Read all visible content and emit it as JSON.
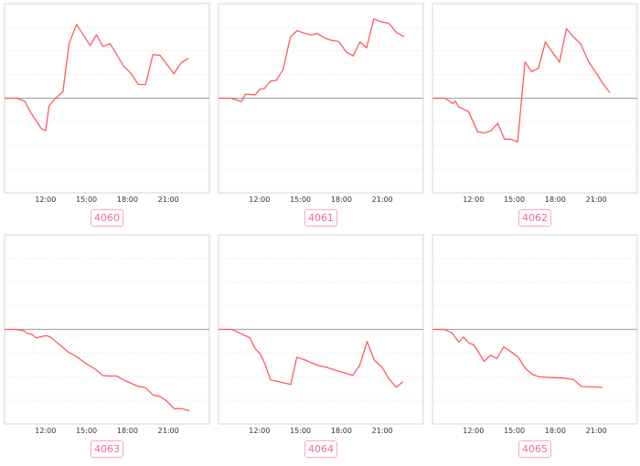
{
  "chart_data": [
    {
      "type": "line",
      "label": "4060",
      "xticks": [
        "12:00",
        "15:00",
        "18:00",
        "21:00"
      ],
      "xlim": [
        "09:00",
        "24:00"
      ],
      "ylim": [
        -4,
        4
      ],
      "grid": true,
      "color": "#ff5a5f",
      "x": [
        9.0,
        9.87,
        10.47,
        10.93,
        11.67,
        12.0,
        12.27,
        12.73,
        13.27,
        13.73,
        14.27,
        15.27,
        15.73,
        16.2,
        16.73,
        17.73,
        18.27,
        18.8,
        19.33,
        19.87,
        20.4,
        21.4,
        21.93,
        22.47
      ],
      "y": [
        0,
        0,
        -0.12,
        -0.62,
        -1.27,
        -1.38,
        -0.31,
        0,
        0.27,
        2.31,
        3.12,
        2.23,
        2.69,
        2.19,
        2.31,
        1.35,
        1.04,
        0.58,
        0.58,
        1.85,
        1.81,
        1.04,
        1.5,
        1.69
      ]
    },
    {
      "type": "line",
      "label": "4061",
      "xticks": [
        "12:00",
        "15:00",
        "18:00",
        "21:00"
      ],
      "xlim": [
        "09:00",
        "24:00"
      ],
      "ylim": [
        -4,
        4
      ],
      "grid": true,
      "color": "#ff5a5f",
      "x": [
        9.02,
        9.91,
        10.69,
        10.96,
        11.69,
        12.02,
        12.36,
        12.8,
        13.24,
        13.73,
        14.27,
        14.76,
        15.24,
        15.8,
        16.24,
        16.8,
        17.24,
        17.8,
        18.36,
        18.87,
        19.36,
        19.84,
        20.38,
        20.91,
        21.47,
        22.02,
        22.58
      ],
      "y": [
        0,
        0,
        -0.14,
        0.17,
        0.14,
        0.38,
        0.41,
        0.72,
        0.76,
        1.21,
        2.6,
        2.86,
        2.76,
        2.68,
        2.74,
        2.54,
        2.45,
        2.4,
        1.95,
        1.79,
        2.38,
        2.13,
        3.35,
        3.23,
        3.17,
        2.79,
        2.6
      ]
    },
    {
      "type": "line",
      "label": "4062",
      "xticks": [
        "12:00",
        "15:00",
        "18:00",
        "21:00"
      ],
      "xlim": [
        "09:00",
        "24:00"
      ],
      "ylim": [
        -4,
        4
      ],
      "grid": true,
      "color": "#ff5a5f",
      "x": [
        9.04,
        9.93,
        10.49,
        10.67,
        10.93,
        11.64,
        12.31,
        12.78,
        13.27,
        13.78,
        14.27,
        14.76,
        15.24,
        15.78,
        16.27,
        16.76,
        17.27,
        17.78,
        18.31,
        18.82,
        19.33,
        19.87,
        20.42,
        20.93,
        21.49,
        22.0
      ],
      "y": [
        0,
        0,
        -0.23,
        -0.12,
        -0.37,
        -0.56,
        -1.42,
        -1.47,
        -1.38,
        -1.06,
        -1.73,
        -1.73,
        -1.85,
        1.53,
        1.12,
        1.27,
        2.38,
        1.95,
        1.53,
        2.94,
        2.59,
        2.29,
        1.56,
        1.12,
        0.62,
        0.23
      ]
    },
    {
      "type": "line",
      "label": "4063",
      "xticks": [
        "12:00",
        "15:00",
        "18:00",
        "21:00"
      ],
      "xlim": [
        "09:00",
        "24:00"
      ],
      "ylim": [
        -4,
        4
      ],
      "grid": true,
      "color": "#ff5a5f",
      "x": [
        8.98,
        9.87,
        10.42,
        10.64,
        10.98,
        11.31,
        12.04,
        12.31,
        12.98,
        13.69,
        14.2,
        15.09,
        15.64,
        16.2,
        16.64,
        17.2,
        17.76,
        18.2,
        18.8,
        19.31,
        19.87,
        20.36,
        20.87,
        21.42,
        21.98,
        22.53
      ],
      "y": [
        0,
        0,
        -0.06,
        -0.17,
        -0.21,
        -0.36,
        -0.26,
        -0.31,
        -0.62,
        -0.97,
        -1.13,
        -1.49,
        -1.68,
        -1.95,
        -1.97,
        -1.97,
        -2.15,
        -2.26,
        -2.41,
        -2.46,
        -2.78,
        -2.83,
        -3.03,
        -3.35,
        -3.35,
        -3.44
      ]
    },
    {
      "type": "line",
      "label": "4064",
      "xticks": [
        "12:00",
        "15:00",
        "18:00",
        "21:00"
      ],
      "xlim": [
        "09:00",
        "24:00"
      ],
      "ylim": [
        -4,
        4
      ],
      "grid": true,
      "color": "#ff5a5f",
      "x": [
        9.07,
        9.96,
        11.29,
        11.69,
        12.07,
        12.4,
        12.8,
        13.4,
        14.29,
        14.73,
        15.29,
        16.29,
        16.84,
        17.73,
        18.84,
        19.33,
        19.89,
        20.4,
        20.96,
        21.47,
        22.02,
        22.51
      ],
      "y": [
        0,
        0,
        -0.35,
        -0.82,
        -1.05,
        -1.46,
        -2.13,
        -2.21,
        -2.33,
        -1.18,
        -1.28,
        -1.53,
        -1.59,
        -1.76,
        -1.94,
        -1.53,
        -0.51,
        -1.29,
        -1.59,
        -2.08,
        -2.45,
        -2.21
      ]
    },
    {
      "type": "line",
      "label": "4065",
      "xticks": [
        "12:00",
        "15:00",
        "18:00",
        "21:00"
      ],
      "xlim": [
        "09:00",
        "24:00"
      ],
      "ylim": [
        -4,
        4
      ],
      "grid": true,
      "color": "#ff5a5f",
      "x": [
        9.07,
        9.89,
        10.44,
        10.93,
        11.27,
        11.67,
        12.0,
        12.33,
        12.78,
        13.27,
        13.71,
        14.22,
        14.78,
        15.29,
        15.78,
        16.33,
        16.82,
        17.78,
        18.67,
        19.33,
        19.93,
        21.44
      ],
      "y": [
        0,
        0,
        -0.15,
        -0.54,
        -0.32,
        -0.58,
        -0.64,
        -0.92,
        -1.35,
        -1.09,
        -1.24,
        -0.74,
        -0.96,
        -1.18,
        -1.63,
        -1.91,
        -2.01,
        -2.04,
        -2.06,
        -2.12,
        -2.42,
        -2.45
      ]
    }
  ]
}
